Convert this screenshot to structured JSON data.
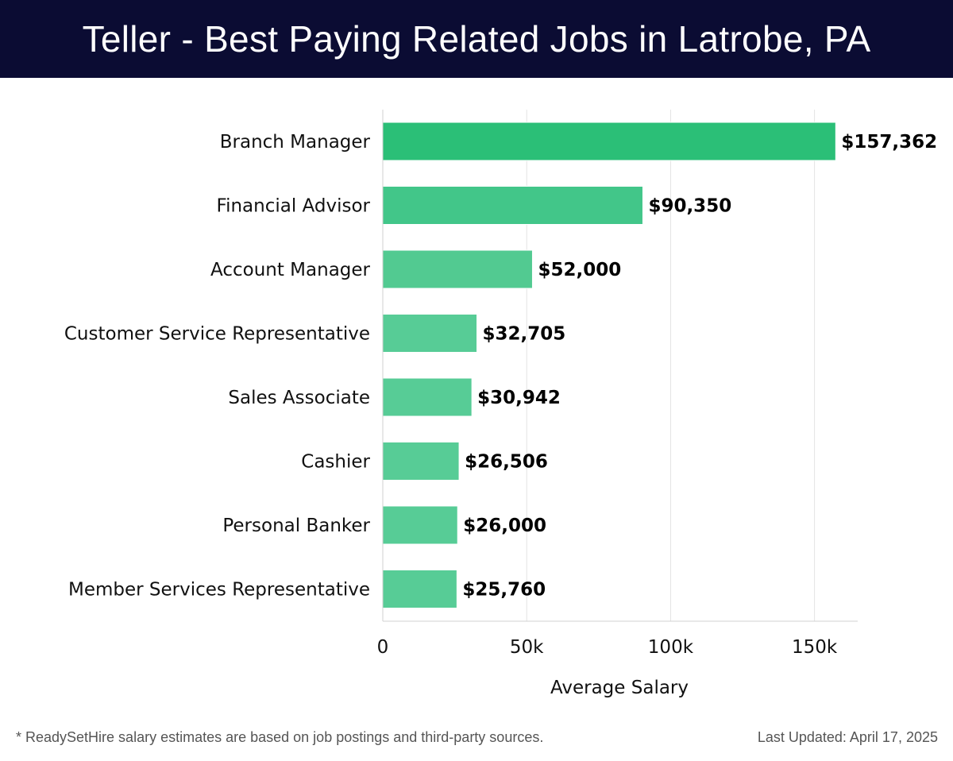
{
  "header": {
    "title": "Teller - Best Paying Related Jobs in Latrobe, PA",
    "background_color": "#0b0c33"
  },
  "chart_data": {
    "type": "bar",
    "orientation": "horizontal",
    "categories": [
      "Branch Manager",
      "Financial Advisor",
      "Account Manager",
      "Customer Service Representative",
      "Sales Associate",
      "Cashier",
      "Personal Banker",
      "Member Services Representative"
    ],
    "values": [
      157362,
      90350,
      52000,
      32705,
      30942,
      26506,
      26000,
      25760
    ],
    "value_labels": [
      "$157,362",
      "$90,350",
      "$52,000",
      "$32,705",
      "$30,942",
      "$26,506",
      "$26,000",
      "$25,760"
    ],
    "bar_colors": [
      "#2bbf77",
      "#42c689",
      "#52ca91",
      "#57cc96",
      "#57cc96",
      "#57cc96",
      "#57cc96",
      "#57cc96"
    ],
    "xlabel": "Average Salary",
    "ylabel": "",
    "xlim": [
      0,
      165000
    ],
    "xticks": [
      0,
      50000,
      100000,
      150000
    ],
    "xtick_labels": [
      "0",
      "50k",
      "100k",
      "150k"
    ],
    "grid": true,
    "legend": "none"
  },
  "footer": {
    "note": "* ReadySetHire salary estimates are based on job postings and third-party sources.",
    "updated": "Last Updated: April 17, 2025"
  }
}
